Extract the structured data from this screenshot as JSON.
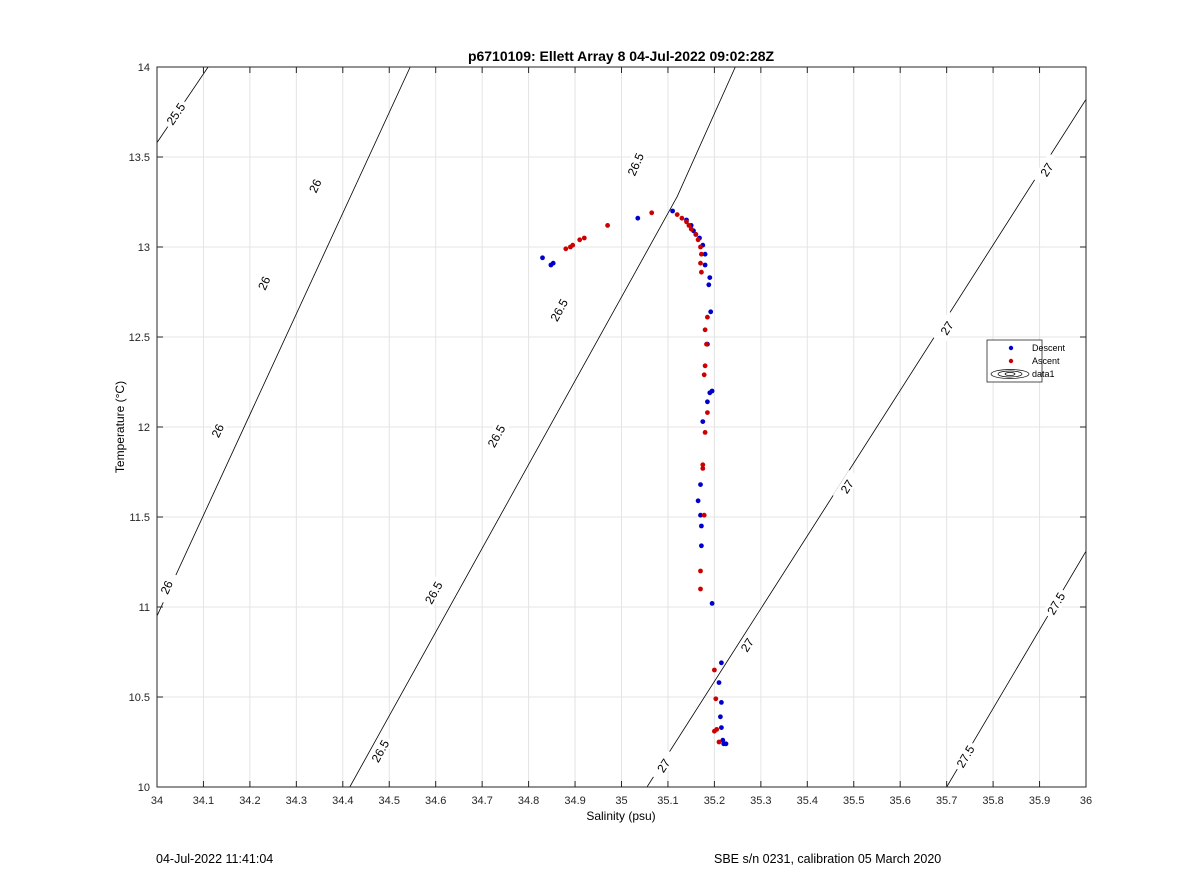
{
  "chart_data": {
    "type": "scatter",
    "title": "p6710109: Ellett Array 8 04-Jul-2022 09:02:28Z",
    "xlabel": "Salinity (psu)",
    "ylabel": "Temperature (°C)",
    "xlim": [
      34,
      36
    ],
    "ylim": [
      10,
      14
    ],
    "xticks": [
      34,
      34.1,
      34.2,
      34.3,
      34.4,
      34.5,
      34.6,
      34.7,
      34.8,
      34.9,
      35,
      35.1,
      35.2,
      35.3,
      35.4,
      35.5,
      35.6,
      35.7,
      35.8,
      35.9,
      36
    ],
    "yticks": [
      10,
      10.5,
      11,
      11.5,
      12,
      12.5,
      13,
      13.5,
      14
    ],
    "grid": true,
    "legend": "right",
    "series": [
      {
        "name": "Descent",
        "color": "#0000cc",
        "points": [
          [
            34.83,
            12.94
          ],
          [
            34.848,
            12.9
          ],
          [
            34.853,
            12.91
          ],
          [
            35.035,
            13.16
          ],
          [
            35.11,
            13.2
          ],
          [
            35.14,
            13.15
          ],
          [
            35.15,
            13.12
          ],
          [
            35.155,
            13.09
          ],
          [
            35.16,
            13.07
          ],
          [
            35.168,
            13.05
          ],
          [
            35.175,
            13.01
          ],
          [
            35.18,
            12.96
          ],
          [
            35.18,
            12.9
          ],
          [
            35.19,
            12.83
          ],
          [
            35.188,
            12.79
          ],
          [
            35.192,
            12.64
          ],
          [
            35.185,
            12.46
          ],
          [
            35.195,
            12.2
          ],
          [
            35.19,
            12.19
          ],
          [
            35.185,
            12.14
          ],
          [
            35.175,
            12.03
          ],
          [
            35.17,
            11.68
          ],
          [
            35.165,
            11.59
          ],
          [
            35.17,
            11.51
          ],
          [
            35.172,
            11.45
          ],
          [
            35.172,
            11.34
          ],
          [
            35.195,
            11.02
          ],
          [
            35.215,
            10.69
          ],
          [
            35.21,
            10.58
          ],
          [
            35.215,
            10.47
          ],
          [
            35.213,
            10.39
          ],
          [
            35.215,
            10.33
          ],
          [
            35.218,
            10.26
          ],
          [
            35.22,
            10.24
          ],
          [
            35.225,
            10.24
          ]
        ]
      },
      {
        "name": "Ascent",
        "color": "#cc0000",
        "points": [
          [
            34.88,
            12.99
          ],
          [
            34.89,
            13.0
          ],
          [
            34.895,
            13.01
          ],
          [
            34.91,
            13.04
          ],
          [
            34.92,
            13.05
          ],
          [
            34.97,
            13.12
          ],
          [
            35.065,
            13.19
          ],
          [
            35.12,
            13.18
          ],
          [
            35.13,
            13.16
          ],
          [
            35.14,
            13.14
          ],
          [
            35.145,
            13.12
          ],
          [
            35.15,
            13.1
          ],
          [
            35.16,
            13.07
          ],
          [
            35.165,
            13.04
          ],
          [
            35.17,
            13.0
          ],
          [
            35.172,
            12.96
          ],
          [
            35.17,
            12.91
          ],
          [
            35.172,
            12.86
          ],
          [
            35.185,
            12.61
          ],
          [
            35.18,
            12.54
          ],
          [
            35.183,
            12.46
          ],
          [
            35.18,
            12.34
          ],
          [
            35.178,
            12.29
          ],
          [
            35.185,
            12.08
          ],
          [
            35.18,
            11.97
          ],
          [
            35.175,
            11.79
          ],
          [
            35.175,
            11.77
          ],
          [
            35.178,
            11.51
          ],
          [
            35.17,
            11.2
          ],
          [
            35.17,
            11.1
          ],
          [
            35.2,
            10.65
          ],
          [
            35.203,
            10.49
          ],
          [
            35.2,
            10.31
          ],
          [
            35.205,
            10.32
          ],
          [
            35.21,
            10.25
          ]
        ]
      },
      {
        "name": "data1",
        "type": "contour",
        "color": "#000000",
        "points": []
      }
    ],
    "contour_lines": [
      {
        "sigma": "25.5",
        "endpoints": [
          [
            34,
            13.58
          ],
          [
            34.11,
            14
          ]
        ]
      },
      {
        "sigma": "26",
        "endpoints": [
          [
            34,
            10.95
          ],
          [
            34.545,
            14
          ]
        ]
      },
      {
        "sigma": "26.5",
        "endpoints": [
          [
            34.415,
            10
          ],
          [
            35.12,
            13.28
          ],
          [
            35.245,
            14
          ]
        ]
      },
      {
        "sigma": "27",
        "endpoints": [
          [
            35.055,
            10
          ],
          [
            36,
            13.82
          ]
        ]
      },
      {
        "sigma": "27.5",
        "endpoints": [
          [
            35.7,
            10
          ],
          [
            36,
            11.31
          ]
        ]
      }
    ],
    "contour_labels": [
      {
        "text": "25.5",
        "s": 34.04,
        "t": 13.74
      },
      {
        "text": "26",
        "s": 34.34,
        "t": 13.34
      },
      {
        "text": "26",
        "s": 34.23,
        "t": 12.8
      },
      {
        "text": "26",
        "s": 34.13,
        "t": 11.98
      },
      {
        "text": "26",
        "s": 34.02,
        "t": 11.11
      },
      {
        "text": "26.5",
        "s": 35.03,
        "t": 13.46
      },
      {
        "text": "26.5",
        "s": 34.865,
        "t": 12.65
      },
      {
        "text": "26.5",
        "s": 34.73,
        "t": 11.95
      },
      {
        "text": "26.5",
        "s": 34.595,
        "t": 11.08
      },
      {
        "text": "26.5",
        "s": 34.48,
        "t": 10.2
      },
      {
        "text": "27",
        "s": 35.915,
        "t": 13.43
      },
      {
        "text": "27",
        "s": 35.7,
        "t": 12.55
      },
      {
        "text": "27",
        "s": 35.485,
        "t": 11.67
      },
      {
        "text": "27",
        "s": 35.27,
        "t": 10.79
      },
      {
        "text": "27",
        "s": 35.09,
        "t": 10.12
      },
      {
        "text": "27.5",
        "s": 35.935,
        "t": 11.02
      },
      {
        "text": "27.5",
        "s": 35.74,
        "t": 10.17
      }
    ]
  },
  "footer": {
    "left": "04-Jul-2022 11:41:04",
    "right": "SBE s/n 0231, calibration 05 March 2020"
  }
}
